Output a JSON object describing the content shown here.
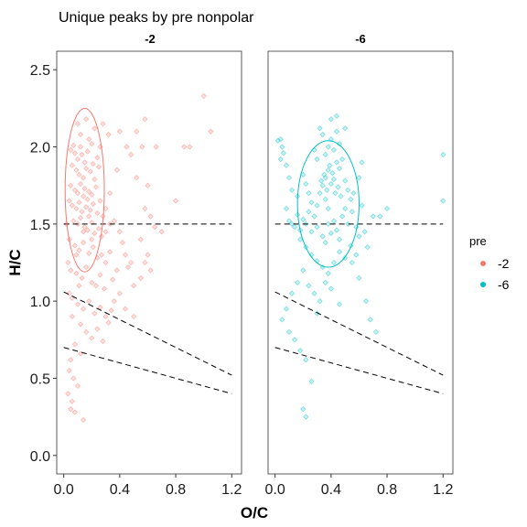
{
  "chart_data": {
    "type": "scatter",
    "title": "Unique peaks by pre nonpolar",
    "xlabel": "O/C",
    "ylabel": "H/C",
    "xlim": [
      -0.05,
      1.27
    ],
    "ylim": [
      -0.12,
      2.62
    ],
    "x_ticks": [
      "0.0",
      "0.4",
      "0.8",
      "1.2"
    ],
    "x_tick_values": [
      0.0,
      0.4,
      0.8,
      1.2
    ],
    "y_ticks": [
      "0.0",
      "0.5",
      "1.0",
      "1.5",
      "2.0",
      "2.5"
    ],
    "y_tick_values": [
      0.0,
      0.5,
      1.0,
      1.5,
      2.0,
      2.5
    ],
    "grid": false,
    "legend": {
      "title": "pre",
      "position": "right",
      "entries": [
        {
          "label": "-2",
          "color": "#F8766D"
        },
        {
          "label": "-6",
          "color": "#00BFC4"
        }
      ]
    },
    "reference_lines": [
      {
        "x1": 0.0,
        "y1": 1.5,
        "x2": 1.2,
        "y2": 1.5
      },
      {
        "x1": 0.0,
        "y1": 1.06,
        "x2": 1.2,
        "y2": 0.52
      },
      {
        "x1": 0.0,
        "y1": 0.7,
        "x2": 1.2,
        "y2": 0.4
      }
    ],
    "panels": [
      {
        "strip": "-2",
        "color": "#F8766D",
        "ellipse": {
          "cx": 0.15,
          "cy": 1.72,
          "rx": 0.14,
          "ry": 0.53
        },
        "points": [
          [
            0.05,
            1.98
          ],
          [
            0.07,
            2.01
          ],
          [
            0.08,
            1.96
          ],
          [
            0.1,
            1.92
          ],
          [
            0.12,
            2.0
          ],
          [
            0.13,
            1.95
          ],
          [
            0.15,
            1.9
          ],
          [
            0.17,
            1.97
          ],
          [
            0.18,
            2.05
          ],
          [
            0.2,
            2.02
          ],
          [
            0.06,
            1.88
          ],
          [
            0.09,
            1.85
          ],
          [
            0.11,
            1.82
          ],
          [
            0.14,
            1.8
          ],
          [
            0.16,
            1.86
          ],
          [
            0.19,
            1.84
          ],
          [
            0.21,
            1.89
          ],
          [
            0.22,
            1.79
          ],
          [
            0.24,
            1.93
          ],
          [
            0.25,
            1.87
          ],
          [
            0.05,
            1.75
          ],
          [
            0.08,
            1.72
          ],
          [
            0.1,
            1.7
          ],
          [
            0.12,
            1.76
          ],
          [
            0.14,
            1.68
          ],
          [
            0.15,
            1.73
          ],
          [
            0.17,
            1.66
          ],
          [
            0.18,
            1.71
          ],
          [
            0.2,
            1.69
          ],
          [
            0.23,
            1.74
          ],
          [
            0.06,
            1.62
          ],
          [
            0.09,
            1.6
          ],
          [
            0.11,
            1.64
          ],
          [
            0.13,
            1.58
          ],
          [
            0.16,
            1.61
          ],
          [
            0.19,
            1.59
          ],
          [
            0.21,
            1.63
          ],
          [
            0.24,
            1.57
          ],
          [
            0.26,
            1.65
          ],
          [
            0.28,
            1.55
          ],
          [
            0.07,
            1.52
          ],
          [
            0.1,
            1.5
          ],
          [
            0.12,
            1.54
          ],
          [
            0.15,
            1.48
          ],
          [
            0.17,
            1.46
          ],
          [
            0.2,
            1.51
          ],
          [
            0.22,
            1.44
          ],
          [
            0.25,
            1.47
          ],
          [
            0.27,
            1.42
          ],
          [
            0.3,
            1.45
          ],
          [
            0.04,
            1.4
          ],
          [
            0.08,
            1.36
          ],
          [
            0.11,
            1.33
          ],
          [
            0.14,
            1.38
          ],
          [
            0.18,
            1.31
          ],
          [
            0.21,
            1.35
          ],
          [
            0.24,
            1.28
          ],
          [
            0.27,
            1.3
          ],
          [
            0.3,
            1.25
          ],
          [
            0.33,
            1.32
          ],
          [
            0.05,
            1.2
          ],
          [
            0.09,
            1.18
          ],
          [
            0.13,
            1.15
          ],
          [
            0.16,
            1.22
          ],
          [
            0.2,
            1.12
          ],
          [
            0.23,
            1.1
          ],
          [
            0.26,
            1.17
          ],
          [
            0.29,
            1.08
          ],
          [
            0.35,
            1.14
          ],
          [
            0.38,
            1.2
          ],
          [
            0.06,
            1.02
          ],
          [
            0.1,
            0.98
          ],
          [
            0.14,
            0.95
          ],
          [
            0.18,
            1.0
          ],
          [
            0.22,
            0.92
          ],
          [
            0.26,
            0.96
          ],
          [
            0.3,
            0.9
          ],
          [
            0.34,
            0.94
          ],
          [
            0.12,
            0.85
          ],
          [
            0.16,
            0.8
          ],
          [
            0.2,
            0.76
          ],
          [
            0.24,
            0.82
          ],
          [
            0.28,
            0.74
          ],
          [
            0.32,
            0.86
          ],
          [
            0.08,
            0.72
          ],
          [
            0.12,
            0.66
          ],
          [
            0.05,
            0.62
          ],
          [
            0.04,
            0.55
          ],
          [
            0.07,
            0.5
          ],
          [
            0.1,
            0.45
          ],
          [
            0.03,
            0.4
          ],
          [
            0.06,
            0.35
          ],
          [
            0.05,
            0.3
          ],
          [
            0.08,
            0.28
          ],
          [
            0.14,
            0.23
          ],
          [
            0.06,
            0.9
          ],
          [
            0.04,
            1.05
          ],
          [
            0.03,
            1.25
          ],
          [
            0.02,
            1.5
          ],
          [
            0.04,
            1.65
          ],
          [
            0.3,
            1.6
          ],
          [
            0.33,
            1.7
          ],
          [
            0.36,
            1.52
          ],
          [
            0.4,
            1.45
          ],
          [
            0.42,
            1.38
          ],
          [
            0.44,
            1.3
          ],
          [
            0.46,
            1.22
          ],
          [
            0.5,
            1.1
          ],
          [
            0.48,
            1.25
          ],
          [
            0.55,
            1.4
          ],
          [
            0.58,
            1.6
          ],
          [
            0.6,
            1.3
          ],
          [
            0.62,
            1.2
          ],
          [
            0.65,
            1.48
          ],
          [
            0.7,
            1.45
          ],
          [
            0.38,
            1.85
          ],
          [
            0.45,
            2.0
          ],
          [
            0.48,
            1.95
          ],
          [
            0.52,
            1.8
          ],
          [
            0.56,
            2.0
          ],
          [
            0.6,
            1.75
          ],
          [
            0.62,
            1.55
          ],
          [
            0.58,
            1.25
          ],
          [
            0.4,
            1.05
          ],
          [
            0.44,
            0.95
          ],
          [
            0.5,
            0.9
          ],
          [
            0.36,
            1.0
          ],
          [
            0.55,
            1.15
          ],
          [
            0.32,
            2.08
          ],
          [
            0.4,
            2.1
          ],
          [
            0.52,
            2.1
          ],
          [
            0.58,
            2.18
          ],
          [
            0.66,
            2.0
          ],
          [
            0.86,
            2.0
          ],
          [
            0.9,
            2.0
          ],
          [
            1.0,
            2.33
          ],
          [
            1.05,
            2.1
          ],
          [
            0.8,
            1.65
          ],
          [
            0.28,
            2.15
          ],
          [
            0.22,
            2.12
          ],
          [
            0.12,
            2.08
          ],
          [
            0.1,
            2.15
          ],
          [
            0.16,
            2.18
          ],
          [
            0.26,
            2.0
          ],
          [
            0.2,
            1.4
          ],
          [
            0.18,
            1.55
          ],
          [
            0.14,
            1.45
          ],
          [
            0.09,
            1.3
          ],
          [
            0.11,
            1.1
          ],
          [
            0.33,
            1.5
          ]
        ]
      },
      {
        "strip": "-6",
        "color": "#00BFC4",
        "ellipse": {
          "cx": 0.38,
          "cy": 1.63,
          "rx": 0.22,
          "ry": 0.41
        },
        "points": [
          [
            0.02,
            2.04
          ],
          [
            0.04,
            2.05
          ],
          [
            0.05,
            2.0
          ],
          [
            0.08,
            1.6
          ],
          [
            0.1,
            1.52
          ],
          [
            0.12,
            1.5
          ],
          [
            0.14,
            1.48
          ],
          [
            0.16,
            1.56
          ],
          [
            0.18,
            1.46
          ],
          [
            0.2,
            1.53
          ],
          [
            0.22,
            1.5
          ],
          [
            0.24,
            1.58
          ],
          [
            0.26,
            1.45
          ],
          [
            0.28,
            1.55
          ],
          [
            0.3,
            1.62
          ],
          [
            0.32,
            1.7
          ],
          [
            0.33,
            1.78
          ],
          [
            0.34,
            1.75
          ],
          [
            0.35,
            1.82
          ],
          [
            0.36,
            1.8
          ],
          [
            0.37,
            1.72
          ],
          [
            0.38,
            1.85
          ],
          [
            0.39,
            1.88
          ],
          [
            0.4,
            1.76
          ],
          [
            0.41,
            1.83
          ],
          [
            0.42,
            1.79
          ],
          [
            0.43,
            1.7
          ],
          [
            0.44,
            1.9
          ],
          [
            0.45,
            1.74
          ],
          [
            0.46,
            1.86
          ],
          [
            0.47,
            1.68
          ],
          [
            0.48,
            1.92
          ],
          [
            0.5,
            1.78
          ],
          [
            0.52,
            1.72
          ],
          [
            0.54,
            1.66
          ],
          [
            0.36,
            1.95
          ],
          [
            0.38,
            2.0
          ],
          [
            0.4,
            2.05
          ],
          [
            0.42,
            1.98
          ],
          [
            0.44,
            2.1
          ],
          [
            0.46,
            2.02
          ],
          [
            0.34,
            2.08
          ],
          [
            0.3,
            1.92
          ],
          [
            0.28,
            1.98
          ],
          [
            0.32,
            2.12
          ],
          [
            0.4,
            2.18
          ],
          [
            0.44,
            2.2
          ],
          [
            0.5,
            2.12
          ],
          [
            0.36,
            1.66
          ],
          [
            0.38,
            1.6
          ],
          [
            0.3,
            1.48
          ],
          [
            0.34,
            1.42
          ],
          [
            0.36,
            1.38
          ],
          [
            0.38,
            1.5
          ],
          [
            0.4,
            1.44
          ],
          [
            0.42,
            1.52
          ],
          [
            0.44,
            1.46
          ],
          [
            0.46,
            1.4
          ],
          [
            0.48,
            1.55
          ],
          [
            0.5,
            1.6
          ],
          [
            0.52,
            1.5
          ],
          [
            0.55,
            1.58
          ],
          [
            0.58,
            1.48
          ],
          [
            0.6,
            1.42
          ],
          [
            0.62,
            1.62
          ],
          [
            0.56,
            1.7
          ],
          [
            0.6,
            1.8
          ],
          [
            0.62,
            1.9
          ],
          [
            0.26,
            1.64
          ],
          [
            0.24,
            1.7
          ],
          [
            0.22,
            1.76
          ],
          [
            0.2,
            1.82
          ],
          [
            0.16,
            1.68
          ],
          [
            0.12,
            1.72
          ],
          [
            0.1,
            1.8
          ],
          [
            0.08,
            1.88
          ],
          [
            0.06,
            1.96
          ],
          [
            0.04,
            1.92
          ],
          [
            0.18,
            1.4
          ],
          [
            0.22,
            1.35
          ],
          [
            0.26,
            1.3
          ],
          [
            0.3,
            1.26
          ],
          [
            0.34,
            1.22
          ],
          [
            0.38,
            1.18
          ],
          [
            0.42,
            1.25
          ],
          [
            0.46,
            1.32
          ],
          [
            0.5,
            1.28
          ],
          [
            0.54,
            1.36
          ],
          [
            0.58,
            1.3
          ],
          [
            0.2,
            1.2
          ],
          [
            0.24,
            1.1
          ],
          [
            0.28,
            1.05
          ],
          [
            0.32,
            1.0
          ],
          [
            0.36,
            1.12
          ],
          [
            0.4,
            1.08
          ],
          [
            0.16,
            1.12
          ],
          [
            0.12,
            1.05
          ],
          [
            0.08,
            0.95
          ],
          [
            0.05,
            0.88
          ],
          [
            0.1,
            0.8
          ],
          [
            0.14,
            0.75
          ],
          [
            0.18,
            0.68
          ],
          [
            0.22,
            0.62
          ],
          [
            0.26,
            0.48
          ],
          [
            0.2,
            0.3
          ],
          [
            0.22,
            0.25
          ],
          [
            0.55,
            1.25
          ],
          [
            0.6,
            1.15
          ],
          [
            0.65,
            1.0
          ],
          [
            0.68,
            0.88
          ],
          [
            0.72,
            0.8
          ],
          [
            0.66,
            1.35
          ],
          [
            0.7,
            1.55
          ],
          [
            0.64,
            1.45
          ],
          [
            0.46,
            0.98
          ],
          [
            0.3,
            0.92
          ],
          [
            1.2,
            1.65
          ],
          [
            1.2,
            1.95
          ],
          [
            0.8,
            1.6
          ],
          [
            0.75,
            1.55
          ]
        ]
      }
    ]
  }
}
